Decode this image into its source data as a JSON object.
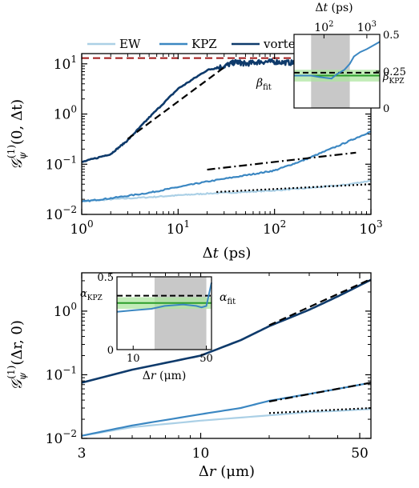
{
  "colors": {
    "ew": "#abd0e6",
    "kpz": "#3b87c2",
    "vortex": "#0e3a6b",
    "green": "#2a9d2a",
    "greenband": "#aee6a0",
    "shade": "#c8c8c8",
    "red": "#a01818",
    "fit": "#000000"
  },
  "chart_data": [
    {
      "type": "line",
      "panel": "top",
      "xlabel": "Δt (ps)",
      "ylabel": "G_ψ^(1)(0, Δt)",
      "xscale": "log",
      "yscale": "log",
      "xlim": [
        1,
        1000
      ],
      "ylim": [
        0.01,
        16
      ],
      "xticks": [
        {
          "b": "10",
          "e": "0",
          "v": 1
        },
        {
          "b": "10",
          "e": "1",
          "v": 10
        },
        {
          "b": "10",
          "e": "2",
          "v": 100
        },
        {
          "b": "10",
          "e": "3",
          "v": 1000
        }
      ],
      "yticks": [
        {
          "b": "10",
          "e": "−2",
          "v": 0.01
        },
        {
          "b": "10",
          "e": "−1",
          "v": 0.1
        },
        {
          "b": "10",
          "e": "0",
          "v": 1
        },
        {
          "b": "10",
          "e": "1",
          "v": 10
        }
      ],
      "legend": [
        "EW",
        "KPZ",
        "vortex"
      ],
      "legend_location": "top",
      "series": [
        {
          "name": "EW",
          "x": [
            1,
            2,
            5,
            10,
            20,
            50,
            100,
            200,
            500,
            1000
          ],
          "y": [
            0.018,
            0.02,
            0.022,
            0.024,
            0.026,
            0.028,
            0.03,
            0.033,
            0.038,
            0.047
          ]
        },
        {
          "name": "KPZ",
          "x": [
            1,
            2,
            5,
            10,
            20,
            50,
            100,
            200,
            500,
            1000
          ],
          "y": [
            0.018,
            0.021,
            0.027,
            0.035,
            0.045,
            0.06,
            0.075,
            0.12,
            0.25,
            0.45
          ]
        },
        {
          "name": "vortex",
          "x": [
            1,
            2,
            3,
            5,
            10,
            20,
            30,
            40,
            50,
            70,
            100,
            150,
            200,
            300,
            400,
            500
          ],
          "y": [
            0.11,
            0.16,
            0.3,
            0.85,
            3.2,
            7.5,
            9,
            11,
            10,
            11,
            11,
            10.5,
            11,
            10.5,
            11,
            11
          ]
        }
      ],
      "fit_lines": [
        {
          "style": "dashed",
          "x": [
            3,
            30
          ],
          "y": [
            0.32,
            8.5
          ]
        },
        {
          "style": "dashdot",
          "x": [
            20,
            700
          ],
          "y": [
            0.078,
            0.17
          ]
        },
        {
          "style": "dotted",
          "x": [
            25,
            1000
          ],
          "y": [
            0.028,
            0.04
          ]
        }
      ],
      "reference_line": {
        "y": 13,
        "style": "dashed",
        "color": "red"
      },
      "inset": {
        "xlabel": "Δt (ps)",
        "xscale": "log",
        "xlim": [
          20,
          2000
        ],
        "ylim": [
          0,
          0.5
        ],
        "xticks": [
          {
            "b": "10",
            "e": "2",
            "v": 100
          },
          {
            "b": "10",
            "e": "3",
            "v": 1000
          }
        ],
        "yticks": [
          "0",
          "0.25",
          "0.5"
        ],
        "shaded_x": [
          50,
          400
        ],
        "series_x": [
          20,
          50,
          80,
          150,
          200,
          300,
          400,
          500,
          700,
          1000,
          2000
        ],
        "series_y": [
          0.22,
          0.22,
          0.21,
          0.2,
          0.23,
          0.26,
          0.3,
          0.35,
          0.38,
          0.4,
          0.45
        ],
        "beta_fit": 0.22,
        "beta_fit_band": [
          0.18,
          0.26
        ],
        "beta_kpz": 0.24,
        "label_fit": "β",
        "label_fit_sub": "fit",
        "label_ref": "β",
        "label_ref_sub": "KPZ"
      }
    },
    {
      "type": "line",
      "panel": "bottom",
      "xlabel": "Δr (μm)",
      "ylabel": "G_ψ^(1)(Δr, 0)",
      "xscale": "log",
      "yscale": "log",
      "xlim": [
        3,
        56
      ],
      "ylim": [
        0.01,
        4
      ],
      "xticks": [
        {
          "b": "3",
          "e": "",
          "v": 3
        },
        {
          "b": "10",
          "e": "",
          "v": 10
        },
        {
          "b": "50",
          "e": "",
          "v": 50
        }
      ],
      "yticks": [
        {
          "b": "10",
          "e": "−2",
          "v": 0.01
        },
        {
          "b": "10",
          "e": "−1",
          "v": 0.1
        },
        {
          "b": "10",
          "e": "0",
          "v": 1
        }
      ],
      "series": [
        {
          "name": "EW",
          "x": [
            3,
            5,
            10,
            20,
            30,
            40,
            56
          ],
          "y": [
            0.011,
            0.015,
            0.019,
            0.023,
            0.026,
            0.027,
            0.029
          ]
        },
        {
          "name": "KPZ",
          "x": [
            3,
            5,
            10,
            15,
            20,
            30,
            40,
            56
          ],
          "y": [
            0.011,
            0.016,
            0.024,
            0.03,
            0.039,
            0.05,
            0.06,
            0.075
          ]
        },
        {
          "name": "vortex",
          "x": [
            3,
            5,
            10,
            15,
            20,
            30,
            40,
            56
          ],
          "y": [
            0.075,
            0.12,
            0.2,
            0.35,
            0.58,
            1.05,
            1.7,
            3.1
          ]
        }
      ],
      "fit_lines": [
        {
          "style": "dashed",
          "x": [
            20,
            56
          ],
          "y": [
            0.6,
            3.2
          ]
        },
        {
          "style": "dashdot",
          "x": [
            20,
            56
          ],
          "y": [
            0.038,
            0.075
          ]
        },
        {
          "style": "dotted",
          "x": [
            20,
            56
          ],
          "y": [
            0.025,
            0.03
          ]
        }
      ],
      "inset": {
        "xlabel": "Δr (μm)",
        "xscale": "log",
        "xlim": [
          7,
          56
        ],
        "ylim": [
          0,
          0.5
        ],
        "xticks": [
          {
            "b": "10",
            "e": "",
            "v": 10
          },
          {
            "b": "50",
            "e": "",
            "v": 50
          }
        ],
        "yticks": [
          "0",
          "0.5"
        ],
        "shaded_x": [
          16,
          50
        ],
        "series_x": [
          7,
          10,
          15,
          20,
          30,
          40,
          45,
          50,
          56
        ],
        "series_y": [
          0.26,
          0.27,
          0.28,
          0.3,
          0.31,
          0.3,
          0.29,
          0.3,
          0.46
        ],
        "alpha_fit": 0.32,
        "alpha_fit_band": [
          0.28,
          0.36
        ],
        "alpha_kpz": 0.37,
        "label_fit": "α",
        "label_fit_sub": "fit",
        "label_ref": "α",
        "label_ref_sub": "KPZ"
      }
    }
  ]
}
